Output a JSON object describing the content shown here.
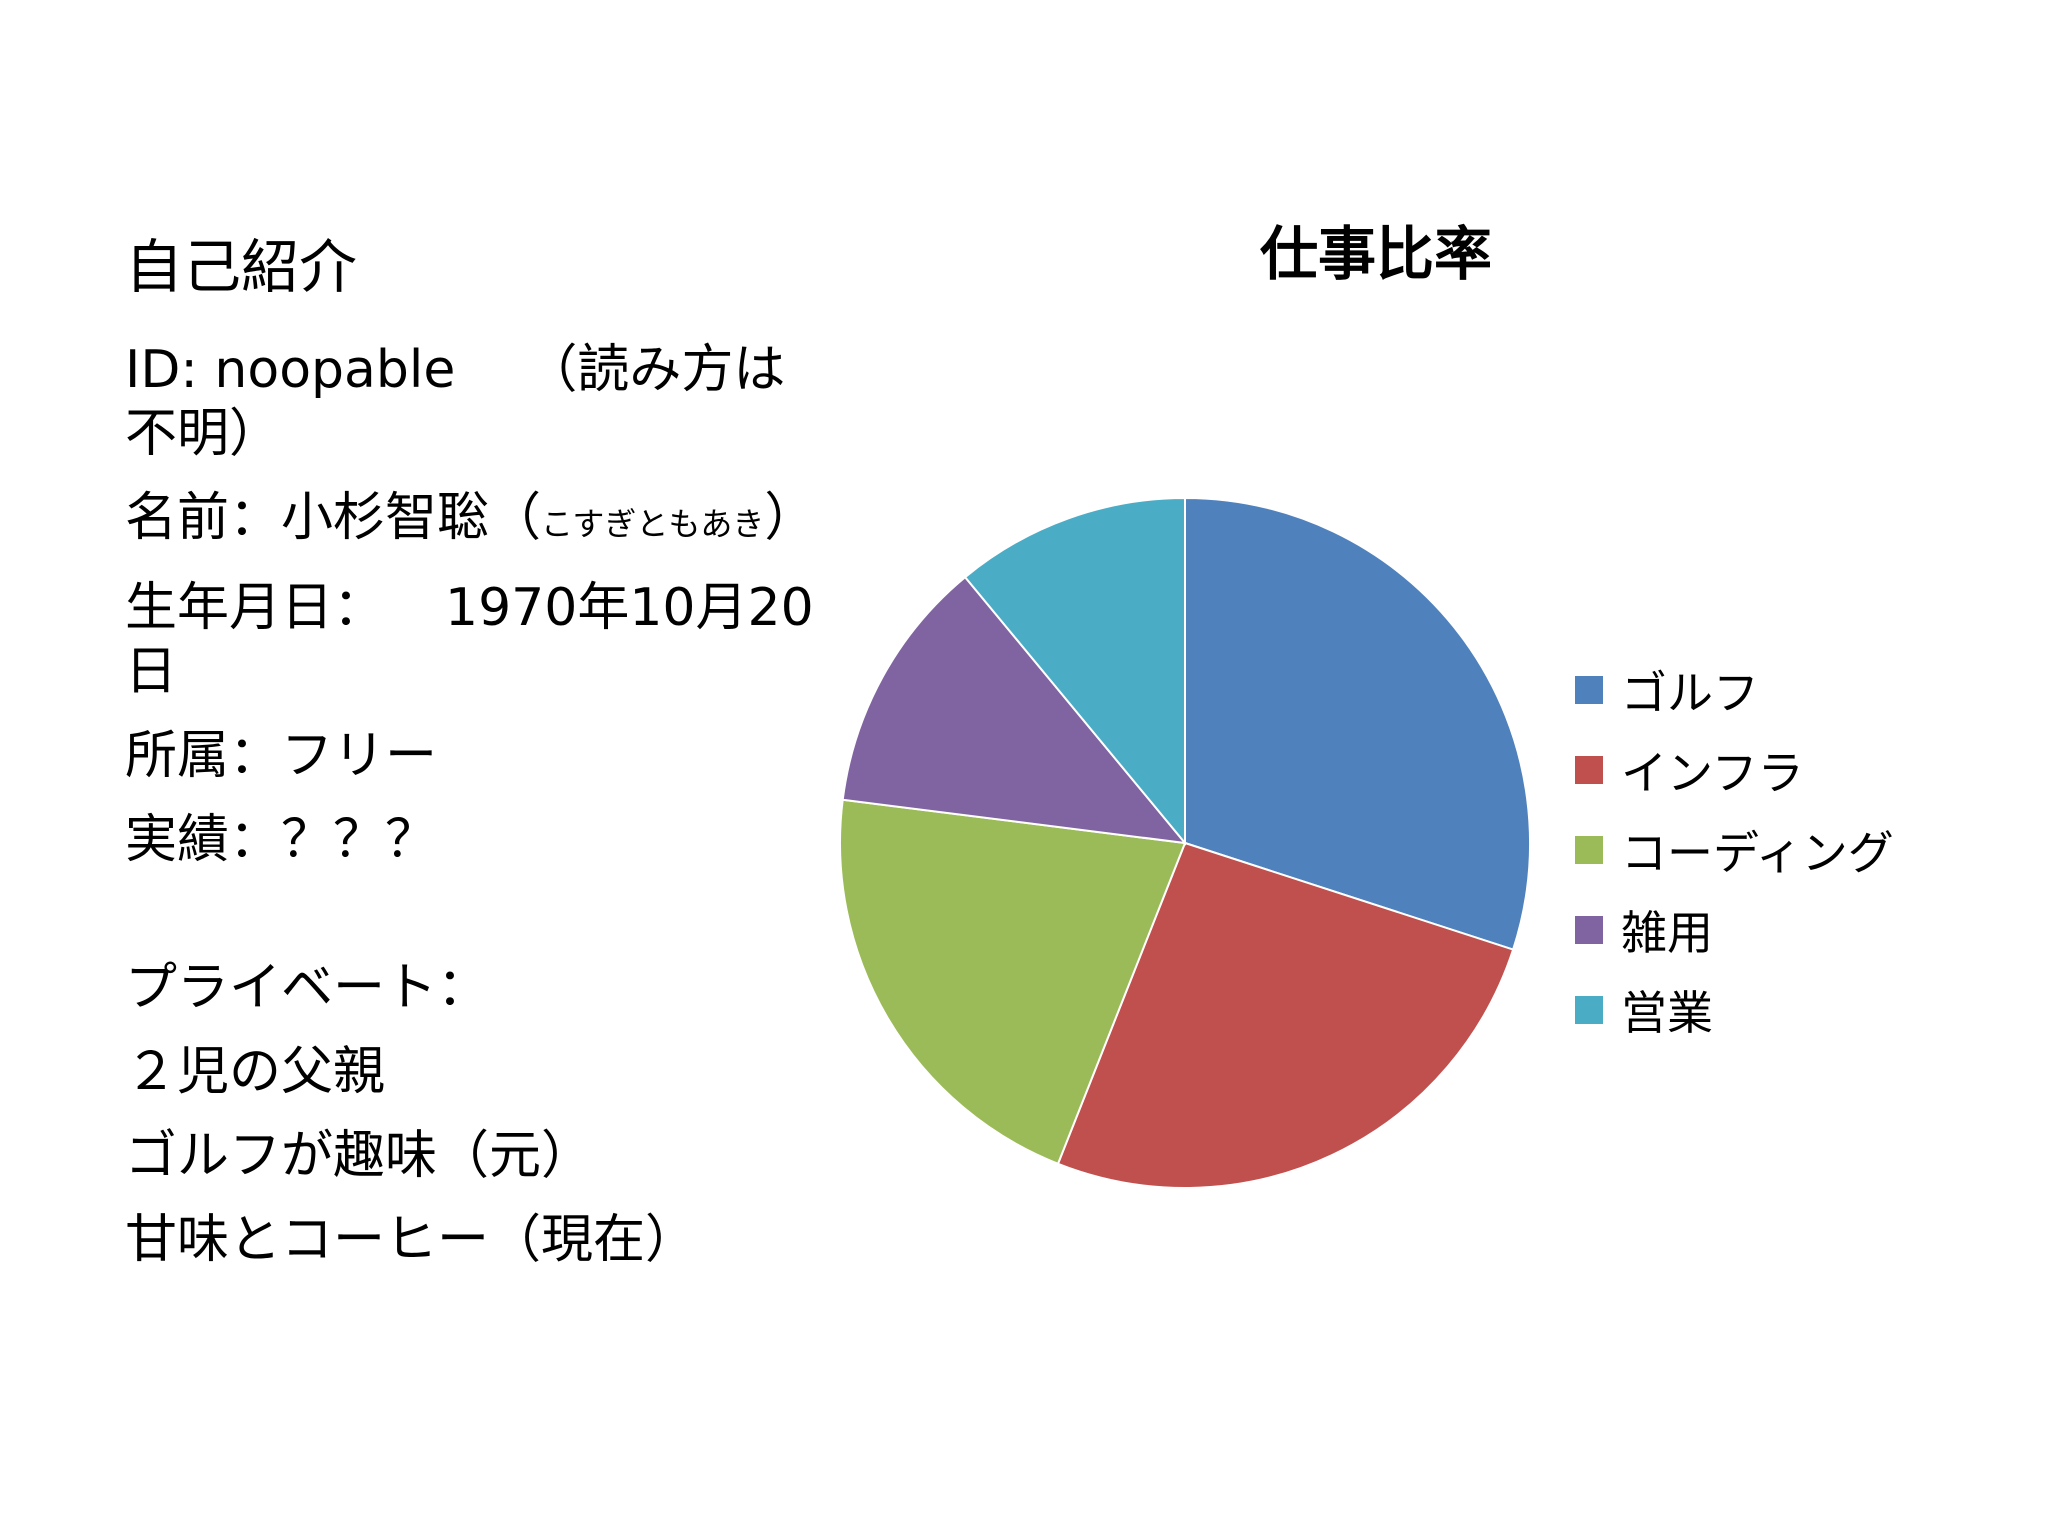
{
  "slide": {
    "title": "自己紹介",
    "id_line": "ID: noopable",
    "id_note": "（読み方は不明）",
    "name_prefix": "名前：小杉智聡（",
    "name_reading": "こすぎともあき",
    "name_suffix": "）",
    "birth_label": "生年月日：",
    "birth_value": "1970年10月20日",
    "affiliation": "所属：フリー",
    "achievements": "実績：？？？",
    "private_label": "プライベート：",
    "private_items": [
      "２児の父親",
      "ゴルフが趣味（元）",
      "甘味とコーヒー（現在）"
    ]
  },
  "chart_data": {
    "type": "pie",
    "title": "仕事比率",
    "categories": [
      "ゴルフ",
      "インフラ",
      "コーディング",
      "雑用",
      "営業"
    ],
    "values": [
      30,
      26,
      21,
      12,
      11
    ],
    "colors": [
      "#4f81bd",
      "#c0504d",
      "#9bbb59",
      "#8064a2",
      "#4bacc6"
    ],
    "start_angle_deg": 0,
    "direction": "clockwise",
    "legend_position": "right"
  }
}
